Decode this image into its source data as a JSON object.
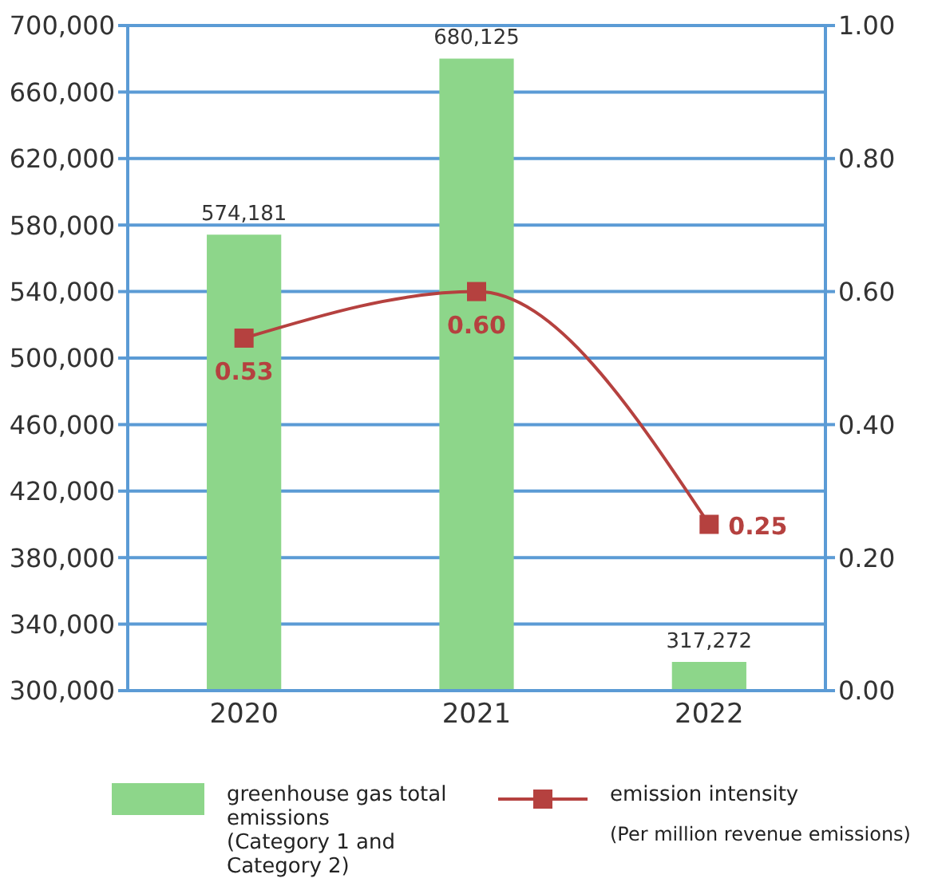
{
  "chart_data": {
    "type": "bar",
    "categories": [
      "2020",
      "2021",
      "2022"
    ],
    "series": [
      {
        "name": "greenhouse gas total emissions\n(Category 1 and Category 2)",
        "color": "#8dd68a",
        "values": [
          574181,
          680125,
          317272
        ],
        "value_labels": [
          "574,181",
          "680,125",
          "317,272"
        ]
      },
      {
        "name": "emission intensity",
        "type": "line",
        "axis": "y2",
        "color": "#b5413f",
        "values": [
          0.53,
          0.6,
          0.25
        ],
        "value_labels": [
          "0.53",
          "0.60",
          "0.25"
        ],
        "marker": "square",
        "line_style": "solid"
      }
    ],
    "ylim": [
      300000,
      700000
    ],
    "yticks": [
      {
        "value": 300000,
        "label": "300,000"
      },
      {
        "value": 340000,
        "label": "340,000"
      },
      {
        "value": 380000,
        "label": "380,000"
      },
      {
        "value": 420000,
        "label": "420,000"
      },
      {
        "value": 460000,
        "label": "460,000"
      },
      {
        "value": 500000,
        "label": "500,000"
      },
      {
        "value": 540000,
        "label": "540,000"
      },
      {
        "value": 580000,
        "label": "580,000"
      },
      {
        "value": 620000,
        "label": "620,000"
      },
      {
        "value": 660000,
        "label": "660,000"
      },
      {
        "value": 700000,
        "label": "700,000"
      }
    ],
    "y2lim": [
      0,
      1
    ],
    "y2ticks": [
      {
        "value": 0,
        "label": "0.00"
      },
      {
        "value": 0.2,
        "label": "0.20"
      },
      {
        "value": 0.4,
        "label": "0.40"
      },
      {
        "value": 0.6,
        "label": "0.60"
      },
      {
        "value": 0.8,
        "label": "0.80"
      },
      {
        "value": 1,
        "label": "1.00"
      }
    ],
    "grid": "y",
    "legend": "bottom",
    "annotations": [
      "(Per million revenue emissions)"
    ]
  }
}
